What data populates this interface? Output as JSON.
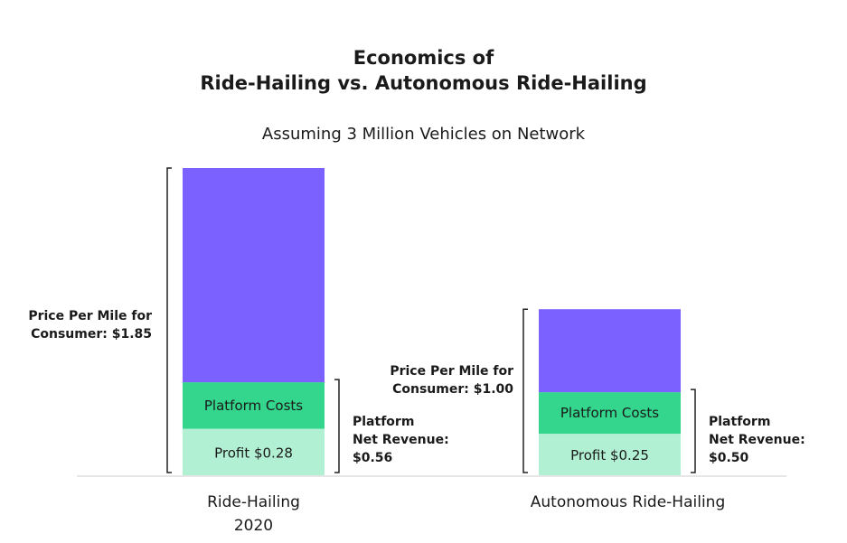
{
  "title_line1": "Economics of",
  "title_line2": "Ride-Hailing vs. Autonomous Ride-Hailing",
  "subtitle": "Assuming 3 Million Vehicles on Network",
  "colors": {
    "other": "#7b61ff",
    "platform_costs": "#33d68c",
    "profit": "#b2f0d3",
    "baseline": "#cccccc",
    "bracket": "#222222"
  },
  "chart_data": {
    "type": "bar",
    "stacked": true,
    "categories": [
      "Ride-Hailing 2020",
      "Autonomous Ride-Hailing"
    ],
    "category_lines": [
      [
        "Ride-Hailing",
        "2020"
      ],
      [
        "Autonomous Ride-Hailing"
      ]
    ],
    "series": [
      {
        "key": "profit",
        "label": "Profit $0.28|Profit $0.25",
        "values": [
          0.28,
          0.25
        ]
      },
      {
        "key": "platform_costs",
        "label": "Platform Costs",
        "values": [
          0.28,
          0.25
        ]
      },
      {
        "key": "other",
        "label": "",
        "values": [
          1.29,
          0.5
        ]
      }
    ],
    "segment_labels": [
      {
        "profit": "Profit $0.28",
        "platform_costs": "Platform Costs"
      },
      {
        "profit": "Profit $0.25",
        "platform_costs": "Platform Costs"
      }
    ],
    "totals": [
      1.85,
      1.0
    ],
    "price_annotations": [
      [
        "Price Per Mile for",
        "Consumer: $1.85"
      ],
      [
        "Price Per Mile for",
        "Consumer: $1.00"
      ]
    ],
    "net_revenue_annotations": [
      [
        "Platform",
        "Net Revenue:",
        "$0.56"
      ],
      [
        "Platform",
        "Net Revenue:",
        "$0.50"
      ]
    ],
    "ylim": [
      0,
      1.85
    ]
  }
}
